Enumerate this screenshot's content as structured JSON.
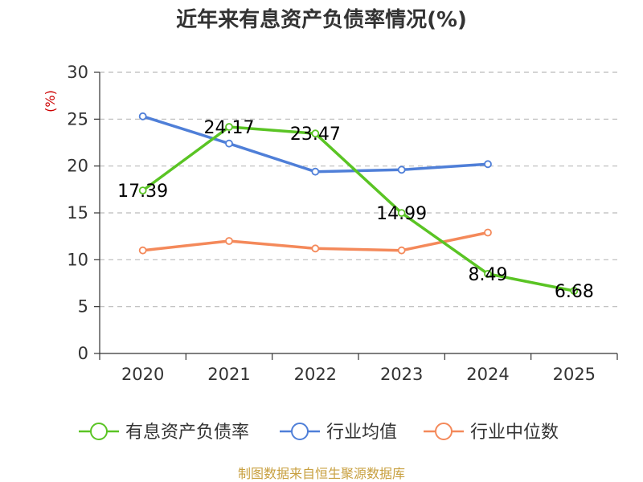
{
  "chart_data": {
    "type": "line",
    "title": "近年来有息资产负债率情况(%)",
    "ylabel": "(%)",
    "xlabel": "",
    "categories": [
      "2020",
      "2021",
      "2022",
      "2023",
      "2024",
      "2025"
    ],
    "ylim": [
      0,
      30
    ],
    "yticks": [
      0,
      5,
      10,
      15,
      20,
      25,
      30
    ],
    "grid": true,
    "legend_position": "bottom",
    "series": [
      {
        "name": "有息资产负债率",
        "color": "#5ac424",
        "values": [
          17.39,
          24.17,
          23.47,
          14.99,
          8.49,
          6.68
        ],
        "data_labels": [
          "17.39",
          "24.17",
          "23.47",
          "14.99",
          "8.49",
          "6.68"
        ]
      },
      {
        "name": "行业均值",
        "color": "#4f7fd8",
        "values": [
          25.3,
          22.4,
          19.4,
          19.6,
          20.2,
          null
        ]
      },
      {
        "name": "行业中位数",
        "color": "#f4895a",
        "values": [
          11.0,
          12.0,
          11.2,
          11.0,
          12.9,
          null
        ]
      }
    ],
    "source": "制图数据来自恒生聚源数据库"
  }
}
